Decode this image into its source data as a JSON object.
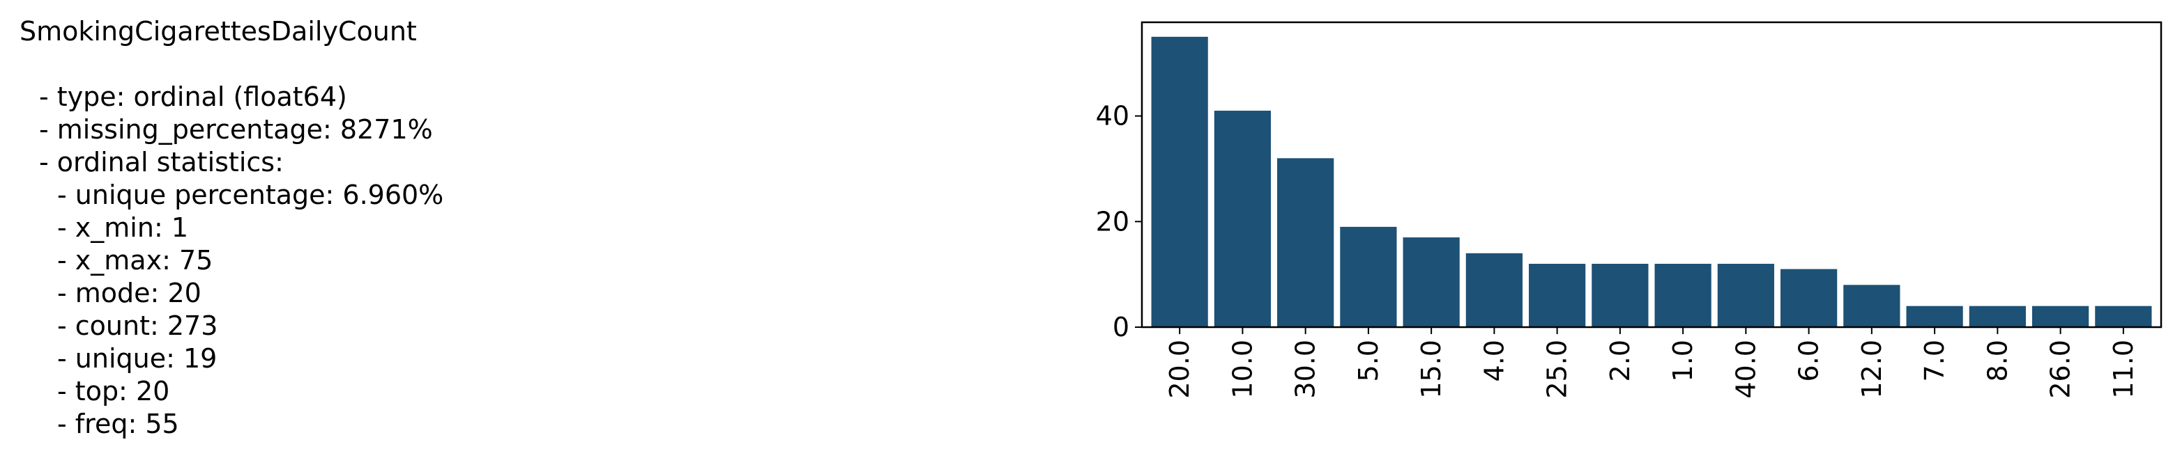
{
  "summary": {
    "title": "SmokingCigarettesDailyCount",
    "lines": [
      {
        "text": "- type: ordinal (float64)",
        "level": 1
      },
      {
        "text": "- missing_percentage: 8271%",
        "level": 1
      },
      {
        "text": "- ordinal statistics:",
        "level": 1
      },
      {
        "text": "- unique percentage: 6.960%",
        "level": 2
      },
      {
        "text": "- x_min: 1",
        "level": 2
      },
      {
        "text": "- x_max: 75",
        "level": 2
      },
      {
        "text": "- mode: 20",
        "level": 2
      },
      {
        "text": "- count: 273",
        "level": 2
      },
      {
        "text": "- unique: 19",
        "level": 2
      },
      {
        "text": "- top: 20",
        "level": 2
      },
      {
        "text": "- freq: 55",
        "level": 2
      }
    ]
  },
  "chart_data": {
    "type": "bar",
    "categories": [
      "20.0",
      "10.0",
      "30.0",
      "5.0",
      "15.0",
      "4.0",
      "25.0",
      "2.0",
      "1.0",
      "40.0",
      "6.0",
      "12.0",
      "7.0",
      "8.0",
      "26.0",
      "11.0"
    ],
    "values": [
      55,
      41,
      32,
      19,
      17,
      14,
      12,
      12,
      12,
      12,
      11,
      8,
      4,
      4,
      4,
      4
    ],
    "yticks": [
      0,
      20,
      40
    ],
    "ylim": [
      0,
      57.75
    ],
    "bar_color": "#1d5175",
    "title": "",
    "xlabel": "",
    "ylabel": "",
    "grid": false,
    "legend": "none"
  }
}
